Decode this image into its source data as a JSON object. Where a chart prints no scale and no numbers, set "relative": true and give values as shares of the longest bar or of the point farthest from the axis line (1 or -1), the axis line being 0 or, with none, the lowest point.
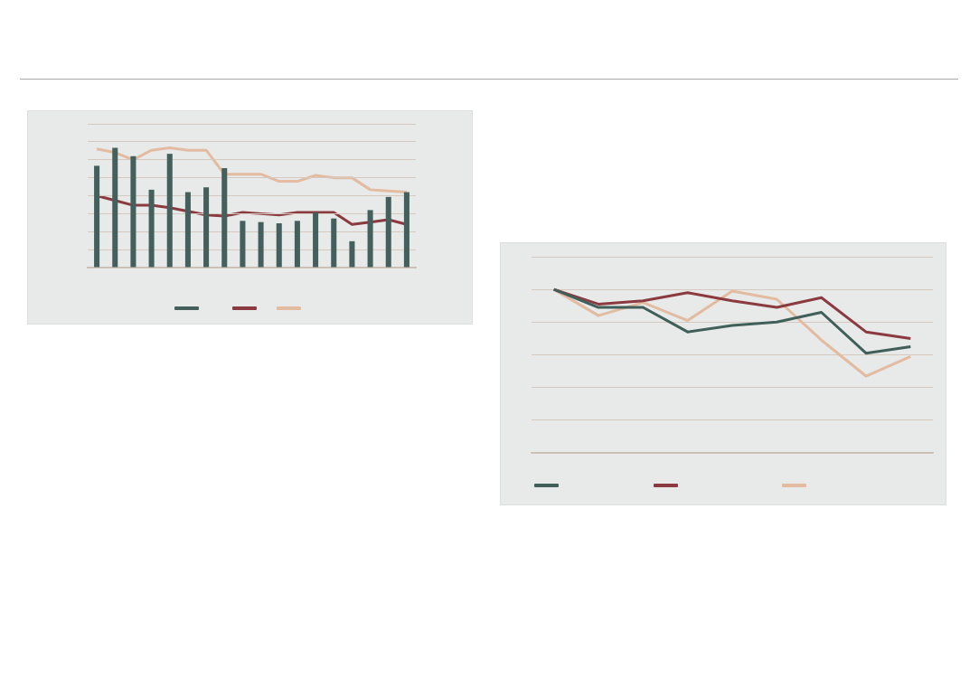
{
  "chart_data": [
    {
      "type": "bar",
      "relative": true,
      "grid": "y",
      "categories": [
        null,
        null,
        null,
        null,
        null,
        null,
        null,
        null,
        null,
        null,
        null,
        null,
        null,
        null,
        null,
        null,
        null,
        null
      ],
      "series": [
        {
          "color": "#44605c",
          "values": [
            0.85,
            1,
            0.93,
            0.65,
            0.95,
            0.63,
            0.67,
            0.83,
            0.39,
            0.38,
            0.37,
            0.39,
            0.46,
            0.41,
            0.22,
            0.48,
            0.59,
            0.63
          ]
        }
      ]
    },
    {
      "type": "line",
      "relative": true,
      "grid": "y",
      "categories": [
        null,
        null,
        null,
        null,
        null,
        null,
        null,
        null,
        null,
        null,
        null,
        null,
        null,
        null,
        null,
        null,
        null,
        null
      ],
      "series": [
        {
          "color": "#8b3a40",
          "values": [
            0.6,
            0.56,
            0.52,
            0.52,
            0.5,
            0.47,
            0.44,
            0.43,
            0.46,
            0.45,
            0.44,
            0.46,
            0.46,
            0.46,
            0.36,
            0.38,
            0.4,
            0.36
          ]
        },
        {
          "color": "#e3bba0",
          "values": [
            0.99,
            0.96,
            0.9,
            0.98,
            1,
            0.98,
            0.98,
            0.78,
            0.78,
            0.78,
            0.72,
            0.72,
            0.77,
            0.75,
            0.75,
            0.65,
            0.64,
            0.63
          ]
        }
      ]
    },
    {
      "type": "line",
      "relative": true,
      "grid": "y",
      "categories": [
        null,
        null,
        null,
        null,
        null,
        null,
        null,
        null,
        null
      ],
      "series": [
        {
          "color": "#3f5f58",
          "values": [
            1,
            0.89,
            0.89,
            0.74,
            0.78,
            0.8,
            0.86,
            0.61,
            0.65
          ]
        },
        {
          "color": "#8b3a40",
          "values": [
            1,
            0.91,
            0.93,
            0.98,
            0.93,
            0.89,
            0.95,
            0.74,
            0.7
          ]
        },
        {
          "color": "#e3bba0",
          "values": [
            1,
            0.84,
            0.92,
            0.81,
            0.99,
            0.94,
            0.69,
            0.47,
            0.59
          ]
        }
      ]
    }
  ]
}
